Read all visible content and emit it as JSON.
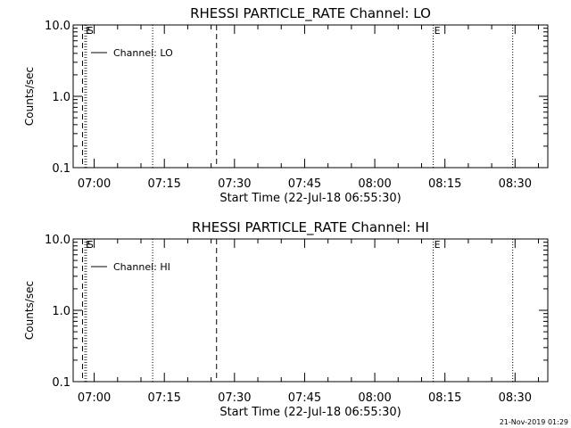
{
  "footer": {
    "timestamp": "21-Nov-2019 01:29"
  },
  "chart_data": [
    {
      "type": "line",
      "title": "RHESSI PARTICLE_RATE Channel: LO",
      "xlabel": "Start Time (22-Jul-18 06:55:30)",
      "ylabel": "Counts/sec",
      "y_scale": "log",
      "ylim": [
        0.1,
        10.0
      ],
      "y_ticks": [
        {
          "value": 0.1,
          "label": "0.1"
        },
        {
          "value": 1.0,
          "label": "1.0"
        },
        {
          "value": 10.0,
          "label": "10.0"
        }
      ],
      "xlim": [
        "06:55:30",
        "08:37:00"
      ],
      "x_ticks": [
        "07:00",
        "07:15",
        "07:30",
        "07:45",
        "08:00",
        "08:15",
        "08:30"
      ],
      "grid": false,
      "legend_position": "top-left",
      "series": [
        {
          "name": "Channel: LO",
          "x": [],
          "y": []
        }
      ],
      "markers": [
        {
          "time": "06:57:30",
          "style": "dashed",
          "label": ""
        },
        {
          "time": "06:58:00",
          "style": "dotted",
          "label": "E"
        },
        {
          "time": "06:58:20",
          "style": "dotted",
          "label": "S"
        },
        {
          "time": "07:12:30",
          "style": "dotted",
          "label": ""
        },
        {
          "time": "07:26:10",
          "style": "dashed",
          "label": ""
        },
        {
          "time": "08:12:30",
          "style": "dotted",
          "label": "E"
        },
        {
          "time": "08:29:30",
          "style": "dotted",
          "label": ""
        }
      ]
    },
    {
      "type": "line",
      "title": "RHESSI PARTICLE_RATE Channel: HI",
      "xlabel": "Start Time (22-Jul-18 06:55:30)",
      "ylabel": "Counts/sec",
      "y_scale": "log",
      "ylim": [
        0.1,
        10.0
      ],
      "y_ticks": [
        {
          "value": 0.1,
          "label": "0.1"
        },
        {
          "value": 1.0,
          "label": "1.0"
        },
        {
          "value": 10.0,
          "label": "10.0"
        }
      ],
      "xlim": [
        "06:55:30",
        "08:37:00"
      ],
      "x_ticks": [
        "07:00",
        "07:15",
        "07:30",
        "07:45",
        "08:00",
        "08:15",
        "08:30"
      ],
      "grid": false,
      "legend_position": "top-left",
      "series": [
        {
          "name": "Channel: HI",
          "x": [],
          "y": []
        }
      ],
      "markers": [
        {
          "time": "06:57:30",
          "style": "dashed",
          "label": ""
        },
        {
          "time": "06:58:00",
          "style": "dotted",
          "label": "E"
        },
        {
          "time": "06:58:20",
          "style": "dotted",
          "label": "S"
        },
        {
          "time": "07:12:30",
          "style": "dotted",
          "label": ""
        },
        {
          "time": "07:26:10",
          "style": "dashed",
          "label": ""
        },
        {
          "time": "08:12:30",
          "style": "dotted",
          "label": "E"
        },
        {
          "time": "08:29:30",
          "style": "dotted",
          "label": ""
        }
      ]
    }
  ]
}
